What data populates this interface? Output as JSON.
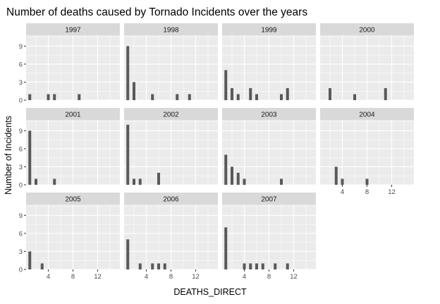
{
  "chart_data": {
    "type": "bar",
    "title": "Number of deaths caused by Tornado Incidents over the years",
    "xlabel": "DEATHS_DIRECT",
    "ylabel": "Number of Incidents",
    "xlim": [
      0.4,
      15.6
    ],
    "ylim": [
      0,
      10.8
    ],
    "x_ticks": [
      4,
      8,
      12
    ],
    "y_ticks": [
      0,
      3,
      6,
      9
    ],
    "grid": true,
    "facet_by": "year",
    "panels": [
      {
        "year": "1997",
        "bars": [
          {
            "x": 1,
            "y": 1
          },
          {
            "x": 4,
            "y": 1
          },
          {
            "x": 5,
            "y": 1
          },
          {
            "x": 9,
            "y": 1
          }
        ]
      },
      {
        "year": "1998",
        "bars": [
          {
            "x": 1,
            "y": 9
          },
          {
            "x": 2,
            "y": 3
          },
          {
            "x": 5,
            "y": 1
          },
          {
            "x": 9,
            "y": 1
          },
          {
            "x": 11,
            "y": 1
          }
        ]
      },
      {
        "year": "1999",
        "bars": [
          {
            "x": 1,
            "y": 5
          },
          {
            "x": 2,
            "y": 2
          },
          {
            "x": 3,
            "y": 1
          },
          {
            "x": 5,
            "y": 2
          },
          {
            "x": 6,
            "y": 1
          },
          {
            "x": 10,
            "y": 1
          },
          {
            "x": 11,
            "y": 2
          }
        ]
      },
      {
        "year": "2000",
        "bars": [
          {
            "x": 2,
            "y": 2
          },
          {
            "x": 6,
            "y": 1
          },
          {
            "x": 11,
            "y": 2
          }
        ]
      },
      {
        "year": "2001",
        "bars": [
          {
            "x": 1,
            "y": 9
          },
          {
            "x": 2,
            "y": 1
          },
          {
            "x": 5,
            "y": 1
          }
        ]
      },
      {
        "year": "2002",
        "bars": [
          {
            "x": 1,
            "y": 10
          },
          {
            "x": 2,
            "y": 1
          },
          {
            "x": 3,
            "y": 1
          },
          {
            "x": 6,
            "y": 2
          }
        ]
      },
      {
        "year": "2003",
        "bars": [
          {
            "x": 1,
            "y": 5
          },
          {
            "x": 2,
            "y": 3
          },
          {
            "x": 3,
            "y": 2
          },
          {
            "x": 4,
            "y": 1
          },
          {
            "x": 10,
            "y": 1
          }
        ]
      },
      {
        "year": "2004",
        "bars": [
          {
            "x": 3,
            "y": 3
          },
          {
            "x": 4,
            "y": 1
          },
          {
            "x": 8,
            "y": 1
          }
        ]
      },
      {
        "year": "2005",
        "bars": [
          {
            "x": 1,
            "y": 3
          },
          {
            "x": 3,
            "y": 1
          }
        ]
      },
      {
        "year": "2006",
        "bars": [
          {
            "x": 1,
            "y": 5
          },
          {
            "x": 3,
            "y": 1
          },
          {
            "x": 5,
            "y": 1
          },
          {
            "x": 6,
            "y": 1
          },
          {
            "x": 7,
            "y": 1
          }
        ]
      },
      {
        "year": "2007",
        "bars": [
          {
            "x": 1,
            "y": 7
          },
          {
            "x": 4,
            "y": 1
          },
          {
            "x": 5,
            "y": 1
          },
          {
            "x": 6,
            "y": 1
          },
          {
            "x": 7,
            "y": 1
          },
          {
            "x": 9,
            "y": 1
          },
          {
            "x": 11,
            "y": 1
          }
        ]
      }
    ],
    "colors": {
      "bar": "#595959",
      "panel_background": "#ebebeb",
      "strip_background": "#d9d9d9",
      "grid_major": "#ffffff",
      "tick_label": "#4d4d4d"
    }
  }
}
